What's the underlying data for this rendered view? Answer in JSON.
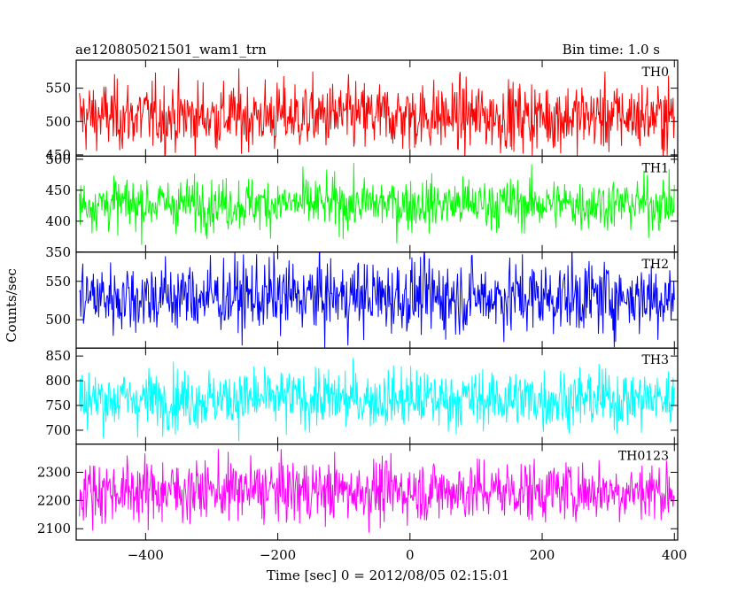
{
  "header": {
    "title": "ae120805021501_wam1_trn",
    "bin_time": "Bin time: 1.0 s"
  },
  "chart_data": {
    "type": "line",
    "xlabel": "Time [sec] 0 = 2012/08/05 02:15:01",
    "ylabel": "Counts/sec",
    "xlim": [
      -505,
      405
    ],
    "x_ticks": [
      -400,
      -200,
      0,
      200,
      400
    ],
    "x_range": [
      -500,
      400
    ],
    "bin_time": 1.0,
    "panels": [
      {
        "name": "TH0",
        "color": "#ff0000",
        "ylim": [
          448,
          592
        ],
        "y_ticks": [
          450,
          500,
          550
        ],
        "mean": 508,
        "sigma": 26
      },
      {
        "name": "TH1",
        "color": "#00ff00",
        "ylim": [
          350,
          505
        ],
        "y_ticks": [
          350,
          400,
          450,
          500
        ],
        "mean": 428,
        "sigma": 21
      },
      {
        "name": "TH2",
        "color": "#0000ff",
        "ylim": [
          463,
          588
        ],
        "y_ticks": [
          500,
          550
        ],
        "mean": 530,
        "sigma": 24
      },
      {
        "name": "TH3",
        "color": "#00ffff",
        "ylim": [
          672,
          866
        ],
        "y_ticks": [
          700,
          750,
          800,
          850
        ],
        "mean": 763,
        "sigma": 30
      },
      {
        "name": "TH0123",
        "color": "#ff00ff",
        "ylim": [
          2060,
          2400
        ],
        "y_ticks": [
          2100,
          2200,
          2300
        ],
        "mean": 2235,
        "sigma": 55
      }
    ]
  }
}
